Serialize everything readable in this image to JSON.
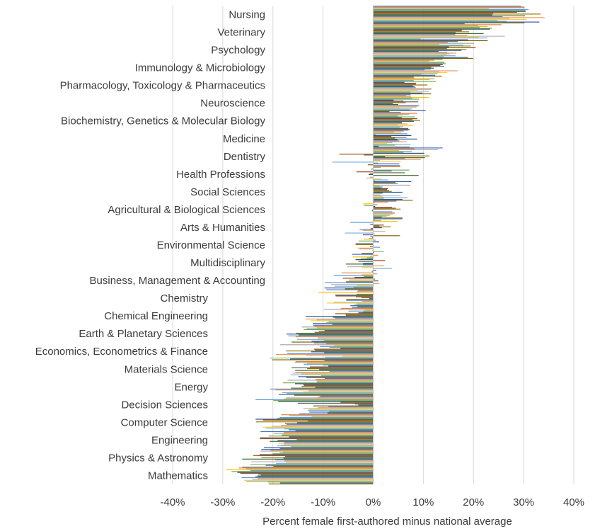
{
  "chart_data": {
    "type": "bar",
    "orientation": "horizontal",
    "title": "",
    "xlabel": "Percent female first-authored minus national average",
    "ylabel": "",
    "xlim": [
      -40,
      40
    ],
    "xticks": [
      "-40%",
      "-30%",
      "-20%",
      "-10%",
      "0%",
      "10%",
      "20%",
      "30%",
      "40%"
    ],
    "grid": "vertical",
    "legend": "none",
    "bars_per_category": 20,
    "categories": [
      "Nursing",
      "Veterinary",
      "Psychology",
      "Immunology & Microbiology",
      "Pharmacology, Toxicology & Pharmaceutics",
      "Neuroscience",
      "Biochemistry, Genetics & Molecular Biology",
      "Medicine",
      "Dentistry",
      "Health Professions",
      "Social Sciences",
      "Agricultural & Biological Sciences",
      "Arts & Humanities",
      "Environmental Science",
      "Multidisciplinary",
      "Business, Management & Accounting",
      "Chemistry",
      "Chemical Engineering",
      "Earth & Planetary Sciences",
      "Economics, Econometrics & Finance",
      "Materials Science",
      "Energy",
      "Decision Sciences",
      "Computer Science",
      "Engineering",
      "Physics & Astronomy",
      "Mathematics"
    ],
    "category_values": [
      {
        "mean": 28,
        "spread": 8
      },
      {
        "mean": 20,
        "spread": 15
      },
      {
        "mean": 17,
        "spread": 5
      },
      {
        "mean": 13,
        "spread": 5
      },
      {
        "mean": 10,
        "spread": 5
      },
      {
        "mean": 7,
        "spread": 5
      },
      {
        "mean": 7,
        "spread": 4
      },
      {
        "mean": 5,
        "spread": 5
      },
      {
        "mean": 3,
        "spread": 13
      },
      {
        "mean": 4,
        "spread": 10
      },
      {
        "mean": 3,
        "spread": 6
      },
      {
        "mean": 2,
        "spread": 6
      },
      {
        "mean": 1,
        "spread": 9
      },
      {
        "mean": -1,
        "spread": 4
      },
      {
        "mean": -2,
        "spread": 6
      },
      {
        "mean": -5,
        "spread": 8
      },
      {
        "mean": -6,
        "spread": 8
      },
      {
        "mean": -8,
        "spread": 8
      },
      {
        "mean": -12,
        "spread": 6
      },
      {
        "mean": -12,
        "spread": 12
      },
      {
        "mean": -13,
        "spread": 7
      },
      {
        "mean": -15,
        "spread": 7
      },
      {
        "mean": -14,
        "spread": 12
      },
      {
        "mean": -18,
        "spread": 7
      },
      {
        "mean": -19,
        "spread": 5
      },
      {
        "mean": -21,
        "spread": 6
      },
      {
        "mean": -24,
        "spread": 6
      }
    ],
    "series_colors": [
      "#4472c4",
      "#ed7d31",
      "#a5a5a5",
      "#ffc000",
      "#5b9bd5",
      "#70ad47",
      "#264478",
      "#9e480e",
      "#636363",
      "#997300",
      "#255e91",
      "#43682b",
      "#698ed0",
      "#f1975a",
      "#b7b7b7",
      "#ffcd33",
      "#7cafdd",
      "#8cc168",
      "#335aa1",
      "#7f6000"
    ],
    "gridline_color": "#d9d9d9"
  }
}
